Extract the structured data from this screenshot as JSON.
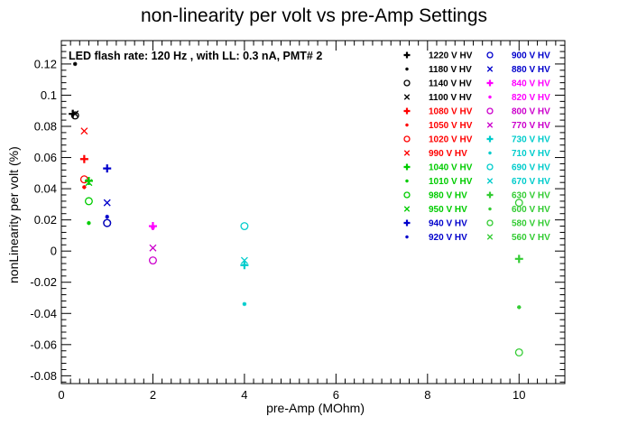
{
  "chart_data": {
    "type": "scatter",
    "title": "non-linearity per volt vs pre-Amp Settings",
    "xlabel": "pre-Amp (MOhm)",
    "ylabel": "nonLinearity per volt (%)",
    "annotation": "LED flash rate: 120 Hz , with LL: 0.3 nA, PMT# 2",
    "xlim": [
      0,
      11
    ],
    "ylim": [
      -0.085,
      0.135
    ],
    "x_ticks": [
      "0",
      "2",
      "4",
      "6",
      "8",
      "10"
    ],
    "y_ticks": [
      "-0.08",
      "-0.06",
      "-0.04",
      "-0.02",
      "0",
      "0.02",
      "0.04",
      "0.06",
      "0.08",
      "0.1",
      "0.12"
    ],
    "grid": false,
    "legend_position": "top-right",
    "series": [
      {
        "name": "1220 V HV",
        "color": "#000000",
        "marker": "plus",
        "points": [
          [
            0.25,
            0.088
          ]
        ]
      },
      {
        "name": "1180 V HV",
        "color": "#000000",
        "marker": "star",
        "points": [
          [
            0.3,
            0.12
          ]
        ]
      },
      {
        "name": "1140 V HV",
        "color": "#000000",
        "marker": "circle",
        "points": [
          [
            0.3,
            0.087
          ],
          [
            1.0,
            0.018
          ]
        ]
      },
      {
        "name": "1100 V HV",
        "color": "#000000",
        "marker": "x",
        "points": [
          [
            0.3,
            0.088
          ]
        ]
      },
      {
        "name": "1080 V HV",
        "color": "#ff0000",
        "marker": "plus",
        "points": [
          [
            0.5,
            0.059
          ]
        ]
      },
      {
        "name": "1050 V HV",
        "color": "#ff0000",
        "marker": "star",
        "points": [
          [
            0.5,
            0.041
          ]
        ]
      },
      {
        "name": "1020 V HV",
        "color": "#ff0000",
        "marker": "circle",
        "points": [
          [
            0.5,
            0.046
          ]
        ]
      },
      {
        "name": "990 V HV",
        "color": "#ff0000",
        "marker": "x",
        "points": [
          [
            0.5,
            0.077
          ]
        ]
      },
      {
        "name": "1040 V HV",
        "color": "#00cc00",
        "marker": "plus",
        "points": [
          [
            0.6,
            0.045
          ]
        ]
      },
      {
        "name": "1010 V HV",
        "color": "#00cc00",
        "marker": "star",
        "points": [
          [
            0.6,
            0.018
          ]
        ]
      },
      {
        "name": "980 V HV",
        "color": "#00cc00",
        "marker": "circle",
        "points": [
          [
            0.6,
            0.032
          ]
        ]
      },
      {
        "name": "950 V HV",
        "color": "#00cc00",
        "marker": "x",
        "points": [
          [
            0.6,
            0.044
          ]
        ]
      },
      {
        "name": "940 V HV",
        "color": "#0000cc",
        "marker": "plus",
        "points": [
          [
            1.0,
            0.053
          ]
        ]
      },
      {
        "name": "920 V HV",
        "color": "#0000cc",
        "marker": "star",
        "points": [
          [
            1.0,
            0.022
          ]
        ]
      },
      {
        "name": "900 V HV",
        "color": "#0000cc",
        "marker": "circle",
        "points": [
          [
            1.0,
            0.018
          ]
        ]
      },
      {
        "name": "880 V HV",
        "color": "#0000cc",
        "marker": "x",
        "points": [
          [
            1.0,
            0.031
          ]
        ]
      },
      {
        "name": "840 V HV",
        "color": "#ff00ff",
        "marker": "plus",
        "points": [
          [
            2.0,
            0.016
          ]
        ]
      },
      {
        "name": "820 V HV",
        "color": "#ff00ff",
        "marker": "star",
        "points": [
          [
            2.0,
            0.015
          ]
        ]
      },
      {
        "name": "800 V HV",
        "color": "#cc00cc",
        "marker": "circle",
        "points": [
          [
            2.0,
            -0.006
          ]
        ]
      },
      {
        "name": "770 V HV",
        "color": "#cc00cc",
        "marker": "x",
        "points": [
          [
            2.0,
            0.002
          ]
        ]
      },
      {
        "name": "730 V HV",
        "color": "#00cccc",
        "marker": "plus",
        "points": [
          [
            4.0,
            -0.009
          ]
        ]
      },
      {
        "name": "710 V HV",
        "color": "#00cccc",
        "marker": "star",
        "points": [
          [
            4.0,
            -0.034
          ]
        ]
      },
      {
        "name": "690 V HV",
        "color": "#00cccc",
        "marker": "circle",
        "points": [
          [
            4.0,
            0.016
          ]
        ]
      },
      {
        "name": "670 V HV",
        "color": "#00cccc",
        "marker": "x",
        "points": [
          [
            4.0,
            -0.006
          ]
        ]
      },
      {
        "name": "630 V HV",
        "color": "#33cc33",
        "marker": "plus",
        "points": [
          [
            10.0,
            -0.005
          ]
        ]
      },
      {
        "name": "600 V HV",
        "color": "#33cc33",
        "marker": "star",
        "points": [
          [
            10.0,
            -0.036
          ]
        ]
      },
      {
        "name": "580 V HV",
        "color": "#33cc33",
        "marker": "circle",
        "points": [
          [
            10.0,
            -0.065
          ],
          [
            10.0,
            0.031
          ]
        ]
      },
      {
        "name": "560 V HV",
        "color": "#33cc33",
        "marker": "x",
        "points": []
      }
    ]
  }
}
